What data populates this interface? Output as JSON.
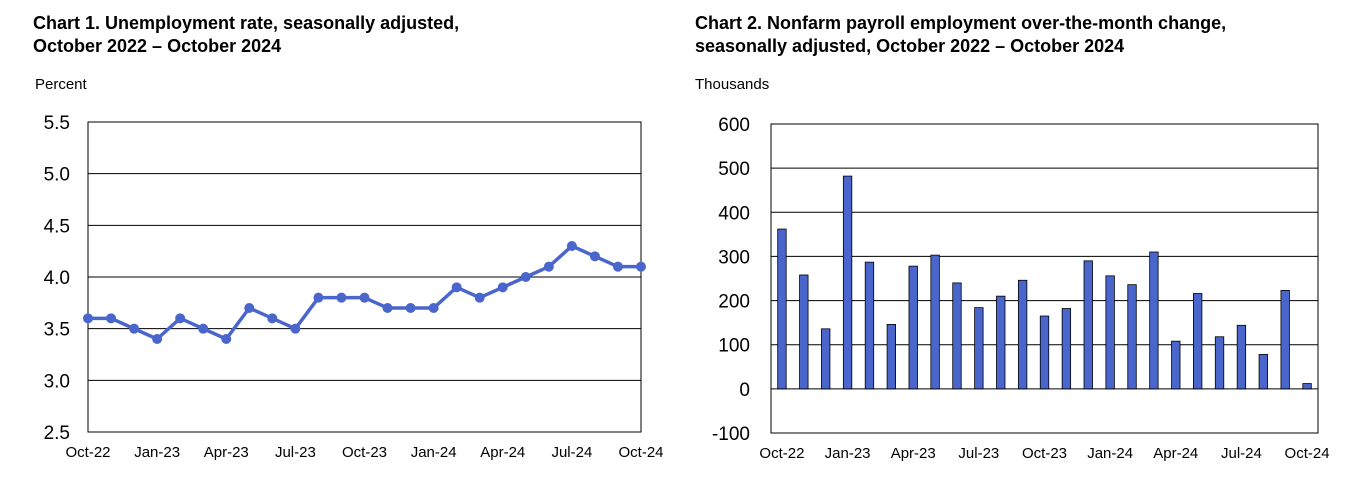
{
  "chart_data": [
    {
      "type": "line",
      "title_line1": "Chart 1. Unemployment rate, seasonally adjusted,",
      "title_line2": "October 2022 – October 2024",
      "ylabel": "Percent",
      "ylim": [
        2.5,
        5.5
      ],
      "yticks": [
        "2.5",
        "3.0",
        "3.5",
        "4.0",
        "4.5",
        "5.0",
        "5.5"
      ],
      "xtick_labels": [
        "Oct-22",
        "Jan-23",
        "Apr-23",
        "Jul-23",
        "Oct-23",
        "Jan-24",
        "Apr-24",
        "Jul-24",
        "Oct-24"
      ],
      "grid": true,
      "color": "#4a66cc",
      "x": [
        "Oct-22",
        "Nov-22",
        "Dec-22",
        "Jan-23",
        "Feb-23",
        "Mar-23",
        "Apr-23",
        "May-23",
        "Jun-23",
        "Jul-23",
        "Aug-23",
        "Sep-23",
        "Oct-23",
        "Nov-23",
        "Dec-23",
        "Jan-24",
        "Feb-24",
        "Mar-24",
        "Apr-24",
        "May-24",
        "Jun-24",
        "Jul-24",
        "Aug-24",
        "Sep-24",
        "Oct-24"
      ],
      "values": [
        3.6,
        3.6,
        3.5,
        3.4,
        3.6,
        3.5,
        3.4,
        3.7,
        3.6,
        3.5,
        3.8,
        3.8,
        3.8,
        3.7,
        3.7,
        3.7,
        3.9,
        3.8,
        3.9,
        4.0,
        4.1,
        4.3,
        4.2,
        4.1,
        4.1
      ]
    },
    {
      "type": "bar",
      "title_line1": "Chart 2. Nonfarm payroll employment over-the-month change,",
      "title_line2": "seasonally adjusted, October 2022 – October 2024",
      "ylabel": "Thousands",
      "ylim": [
        -100,
        600
      ],
      "yticks": [
        "-100",
        "0",
        "100",
        "200",
        "300",
        "400",
        "500",
        "600"
      ],
      "xtick_labels": [
        "Oct-22",
        "Jan-23",
        "Apr-23",
        "Jul-23",
        "Oct-23",
        "Jan-24",
        "Apr-24",
        "Jul-24",
        "Oct-24"
      ],
      "grid": true,
      "color": "#4a66cc",
      "categories": [
        "Oct-22",
        "Nov-22",
        "Dec-22",
        "Jan-23",
        "Feb-23",
        "Mar-23",
        "Apr-23",
        "May-23",
        "Jun-23",
        "Jul-23",
        "Aug-23",
        "Sep-23",
        "Oct-23",
        "Nov-23",
        "Dec-23",
        "Jan-24",
        "Feb-24",
        "Mar-24",
        "Apr-24",
        "May-24",
        "Jun-24",
        "Jul-24",
        "Aug-24",
        "Sep-24",
        "Oct-24"
      ],
      "values": [
        362,
        258,
        136,
        482,
        287,
        146,
        278,
        303,
        240,
        184,
        210,
        246,
        165,
        182,
        290,
        256,
        236,
        310,
        108,
        216,
        118,
        144,
        78,
        223,
        12
      ]
    }
  ]
}
